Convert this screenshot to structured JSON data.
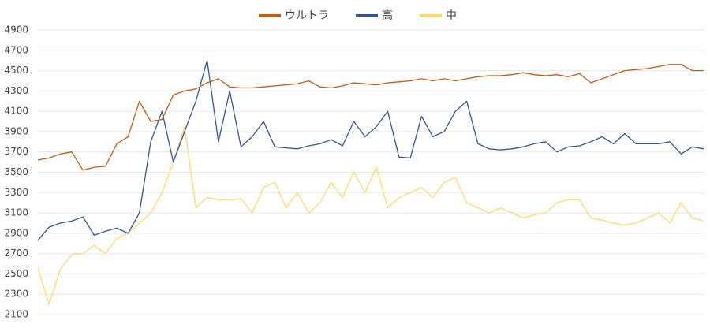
{
  "chart_data": {
    "type": "line",
    "series": [
      {
        "name": "ウルトラ",
        "color": "#c55a11",
        "values": [
          3620,
          3640,
          3680,
          3700,
          3520,
          3550,
          3560,
          3780,
          3850,
          4200,
          4000,
          4020,
          4260,
          4300,
          4320,
          4380,
          4420,
          4340,
          4330,
          4330,
          4340,
          4350,
          4360,
          4370,
          4400,
          4340,
          4330,
          4350,
          4380,
          4370,
          4360,
          4380,
          4390,
          4400,
          4420,
          4400,
          4420,
          4400,
          4420,
          4440,
          4450,
          4450,
          4460,
          4480,
          4460,
          4450,
          4460,
          4440,
          4470,
          4380,
          4420,
          4460,
          4500,
          4510,
          4520,
          4540,
          4560,
          4560,
          4500,
          4500
        ]
      },
      {
        "name": "高",
        "color": "#2f5597",
        "values": [
          2830,
          2960,
          3000,
          3020,
          3060,
          2880,
          2920,
          2950,
          2900,
          3100,
          3800,
          4100,
          3600,
          3900,
          4200,
          4600,
          3800,
          4300,
          3750,
          3850,
          4000,
          3750,
          3740,
          3730,
          3760,
          3780,
          3820,
          3760,
          4000,
          3850,
          3950,
          4100,
          3650,
          3640,
          4050,
          3850,
          3900,
          4100,
          4200,
          3780,
          3730,
          3720,
          3730,
          3750,
          3780,
          3800,
          3700,
          3750,
          3760,
          3800,
          3850,
          3780,
          3880,
          3780,
          3780,
          3780,
          3800,
          3680,
          3750,
          3730
        ]
      },
      {
        "name": "中",
        "color": "#ffd966",
        "values": [
          2560,
          2200,
          2550,
          2690,
          2700,
          2780,
          2700,
          2850,
          2900,
          3000,
          3100,
          3300,
          3600,
          3950,
          3150,
          3250,
          3230,
          3230,
          3240,
          3100,
          3350,
          3400,
          3150,
          3300,
          3100,
          3200,
          3400,
          3250,
          3500,
          3300,
          3550,
          3150,
          3250,
          3300,
          3350,
          3250,
          3400,
          3450,
          3200,
          3150,
          3100,
          3150,
          3100,
          3050,
          3080,
          3100,
          3200,
          3230,
          3230,
          3050,
          3030,
          3000,
          2980,
          3000,
          3050,
          3100,
          3000,
          3200,
          3050,
          3020
        ]
      }
    ],
    "ylim": [
      2100,
      4900
    ],
    "yticks": [
      2100,
      2300,
      2500,
      2700,
      2900,
      3100,
      3300,
      3500,
      3700,
      3900,
      4100,
      4300,
      4500,
      4700,
      4900
    ],
    "grid": true,
    "legend": "top"
  }
}
